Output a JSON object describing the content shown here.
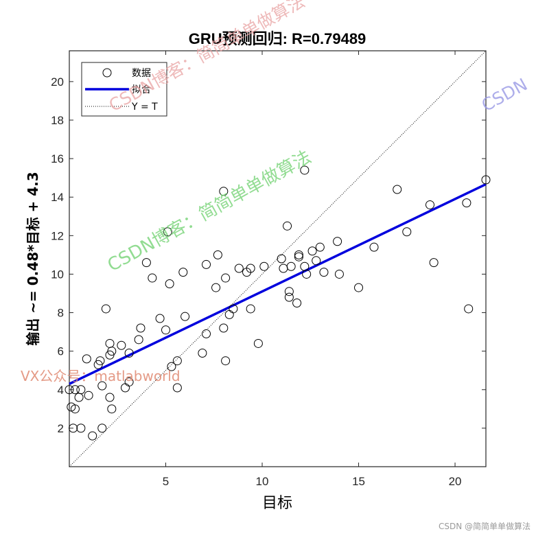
{
  "chart_data": {
    "type": "scatter",
    "title": "GRU预测回归: R=0.79489",
    "xlabel": "目标",
    "ylabel": "输出 ~= 0.48*目标 + 4.3",
    "xlim": [
      0,
      21.6
    ],
    "ylim": [
      0,
      21.6
    ],
    "xticks": [
      5,
      10,
      15,
      20
    ],
    "yticks": [
      2,
      4,
      6,
      8,
      10,
      12,
      14,
      16,
      18,
      20
    ],
    "grid": false,
    "legend_position": "top-left",
    "legend": [
      "数据",
      "拟合",
      "Y = T"
    ],
    "series": [
      {
        "name": "数据",
        "marker": "open-circle",
        "color": "#000000",
        "points": [
          [
            0.0,
            4.0
          ],
          [
            0.1,
            3.1
          ],
          [
            0.2,
            2.0
          ],
          [
            0.3,
            4.0
          ],
          [
            0.3,
            3.0
          ],
          [
            0.5,
            3.6
          ],
          [
            0.6,
            2.0
          ],
          [
            0.6,
            4.0
          ],
          [
            0.9,
            5.6
          ],
          [
            1.0,
            3.7
          ],
          [
            1.2,
            1.6
          ],
          [
            1.5,
            5.3
          ],
          [
            1.6,
            5.5
          ],
          [
            1.7,
            2.0
          ],
          [
            1.7,
            4.2
          ],
          [
            1.9,
            8.2
          ],
          [
            2.1,
            5.8
          ],
          [
            2.1,
            6.4
          ],
          [
            2.1,
            3.6
          ],
          [
            2.2,
            6.0
          ],
          [
            2.2,
            3.0
          ],
          [
            2.7,
            6.3
          ],
          [
            2.9,
            4.1
          ],
          [
            3.1,
            5.9
          ],
          [
            3.1,
            4.4
          ],
          [
            3.6,
            6.6
          ],
          [
            3.7,
            7.2
          ],
          [
            4.0,
            10.6
          ],
          [
            4.3,
            9.8
          ],
          [
            4.7,
            7.7
          ],
          [
            5.0,
            7.1
          ],
          [
            5.1,
            12.2
          ],
          [
            5.2,
            9.5
          ],
          [
            5.3,
            5.2
          ],
          [
            5.6,
            4.1
          ],
          [
            5.6,
            5.5
          ],
          [
            5.9,
            10.1
          ],
          [
            6.0,
            7.8
          ],
          [
            6.9,
            5.9
          ],
          [
            7.1,
            6.9
          ],
          [
            7.1,
            10.5
          ],
          [
            7.6,
            9.3
          ],
          [
            7.7,
            11.0
          ],
          [
            8.0,
            14.3
          ],
          [
            8.0,
            7.2
          ],
          [
            8.1,
            9.8
          ],
          [
            8.1,
            5.5
          ],
          [
            8.3,
            7.9
          ],
          [
            8.5,
            8.2
          ],
          [
            8.8,
            10.3
          ],
          [
            9.2,
            10.1
          ],
          [
            9.4,
            10.3
          ],
          [
            9.4,
            8.2
          ],
          [
            9.8,
            6.4
          ],
          [
            10.1,
            10.4
          ],
          [
            11.0,
            10.8
          ],
          [
            11.1,
            10.3
          ],
          [
            11.3,
            12.5
          ],
          [
            11.4,
            9.1
          ],
          [
            11.4,
            8.8
          ],
          [
            11.5,
            10.4
          ],
          [
            11.8,
            8.5
          ],
          [
            11.9,
            10.9
          ],
          [
            11.9,
            11.0
          ],
          [
            12.2,
            15.4
          ],
          [
            12.2,
            10.4
          ],
          [
            12.3,
            10.0
          ],
          [
            12.6,
            11.2
          ],
          [
            12.8,
            10.7
          ],
          [
            13.0,
            11.4
          ],
          [
            13.2,
            10.1
          ],
          [
            13.9,
            11.7
          ],
          [
            14.0,
            10.0
          ],
          [
            15.0,
            9.3
          ],
          [
            15.8,
            11.4
          ],
          [
            17.0,
            14.4
          ],
          [
            17.5,
            12.2
          ],
          [
            18.7,
            13.6
          ],
          [
            18.9,
            10.6
          ],
          [
            20.6,
            13.7
          ],
          [
            20.7,
            8.2
          ],
          [
            21.6,
            14.9
          ]
        ]
      },
      {
        "name": "拟合",
        "type": "line",
        "color": "#0000dd",
        "slope": 0.48,
        "intercept": 4.3,
        "x": [
          0,
          21.6
        ]
      },
      {
        "name": "Y = T",
        "type": "line",
        "style": "dotted",
        "color": "#000000",
        "x": [
          0,
          21.6
        ],
        "y": [
          0,
          21.6
        ]
      }
    ]
  },
  "watermarks": [
    "CSDN博客：简简单单做算法",
    "CSDN博客：简简单单做算法",
    "CSDN",
    "VX公众号：matlabworld"
  ],
  "footer": "CSDN @简简单单做算法"
}
